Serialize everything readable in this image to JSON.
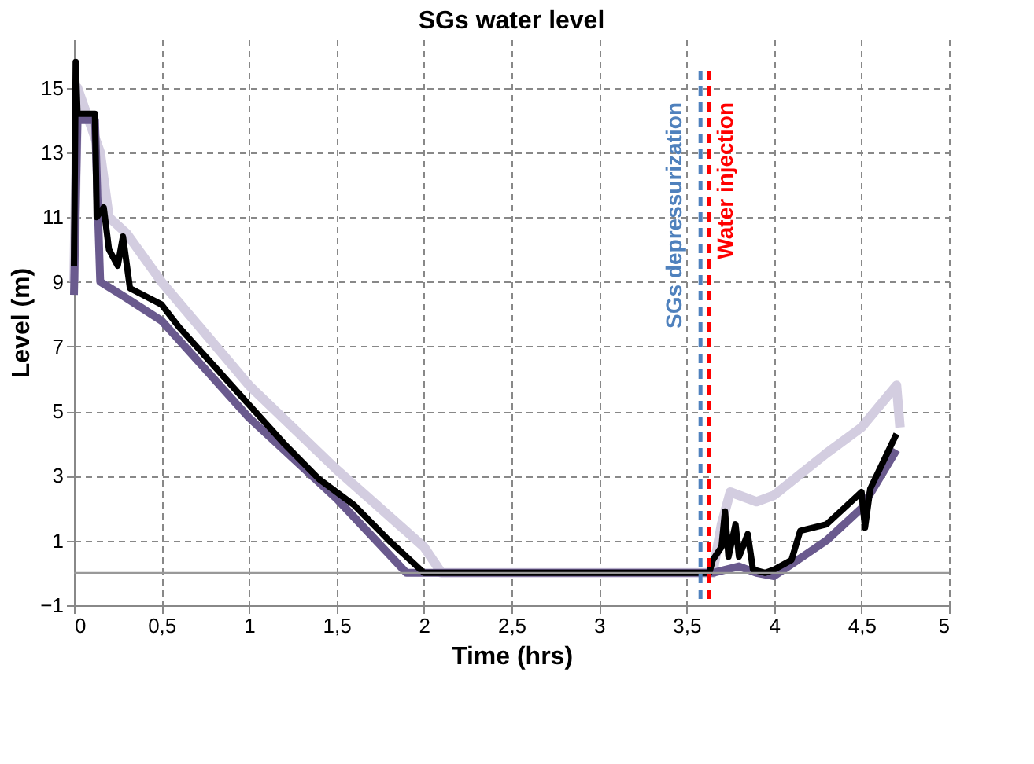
{
  "chart_data": {
    "type": "line",
    "title": "SGs water level",
    "xlabel": "Time (hrs)",
    "ylabel": "Level (m)",
    "xlim": [
      0,
      5
    ],
    "xticks": [
      {
        "value": 0,
        "label": "0"
      },
      {
        "value": 0.5,
        "label": "0,5"
      },
      {
        "value": 1,
        "label": "1"
      },
      {
        "value": 1.5,
        "label": "1,5"
      },
      {
        "value": 2,
        "label": "2"
      },
      {
        "value": 2.5,
        "label": "2,5"
      },
      {
        "value": 3,
        "label": "3"
      },
      {
        "value": 3.5,
        "label": "3,5"
      },
      {
        "value": 4,
        "label": "4"
      },
      {
        "value": 4.5,
        "label": "4,5"
      },
      {
        "value": 5,
        "label": "5"
      }
    ],
    "ylim": [
      -1,
      16.5
    ],
    "yticks": [
      -1,
      1,
      3,
      5,
      7,
      9,
      11,
      13,
      15
    ],
    "grid": true,
    "legend": false,
    "line_style": "solid",
    "marker": "none",
    "series": [
      {
        "color": "#d3cde0",
        "x": [
          0,
          0.02,
          0.15,
          0.2,
          0.3,
          0.5,
          1.0,
          1.5,
          2.0,
          2.1,
          3.65,
          3.7,
          3.75,
          3.9,
          4.0,
          4.3,
          4.5,
          4.7,
          4.72
        ],
        "values": [
          9,
          15,
          13,
          11,
          10.5,
          9,
          5.8,
          3.2,
          0.8,
          0,
          0,
          1.5,
          2.5,
          2.2,
          2.4,
          3.7,
          4.5,
          5.8,
          4.5
        ]
      },
      {
        "color": "#6a5a8e",
        "x": [
          0,
          0.02,
          0.12,
          0.15,
          0.3,
          0.5,
          1.0,
          1.5,
          1.9,
          3.65,
          3.8,
          3.9,
          4.0,
          4.3,
          4.5,
          4.7
        ],
        "values": [
          8.6,
          14,
          14,
          9,
          8.5,
          7.8,
          4.8,
          2.3,
          0,
          0,
          0.2,
          0,
          -0.1,
          1.0,
          2,
          3.8
        ]
      },
      {
        "color": "#000000",
        "x": [
          0,
          0.01,
          0.02,
          0.12,
          0.13,
          0.17,
          0.2,
          0.25,
          0.28,
          0.32,
          0.5,
          0.6,
          0.8,
          1.0,
          1.2,
          1.4,
          1.6,
          1.8,
          2.0,
          3.6,
          3.63,
          3.65,
          3.7,
          3.72,
          3.74,
          3.78,
          3.8,
          3.85,
          3.88,
          3.95,
          4.0,
          4.1,
          4.15,
          4.3,
          4.4,
          4.5,
          4.52,
          4.55,
          4.7
        ],
        "values": [
          9.5,
          15.8,
          14.2,
          14.2,
          11,
          11.3,
          10,
          9.5,
          10.4,
          8.8,
          8.3,
          7.6,
          6.4,
          5.2,
          4.0,
          2.9,
          2.1,
          1.0,
          0,
          0,
          0,
          0.4,
          0.8,
          1.9,
          0.5,
          1.5,
          0.5,
          1.2,
          0.1,
          0,
          0.1,
          0.4,
          1.3,
          1.5,
          2.0,
          2.5,
          1.4,
          2.6,
          4.3
        ]
      }
    ],
    "ref_lines": [
      {
        "axis": "y",
        "value": 0,
        "color": "#999999",
        "line_style": "solid"
      },
      {
        "axis": "x",
        "value": 3.58,
        "label": "SGs depressurization",
        "color": "#4f81bd",
        "line_style": "dashed"
      },
      {
        "axis": "x",
        "value": 3.63,
        "label": "Water injection",
        "color": "#ff0000",
        "line_style": "dashed"
      }
    ]
  }
}
